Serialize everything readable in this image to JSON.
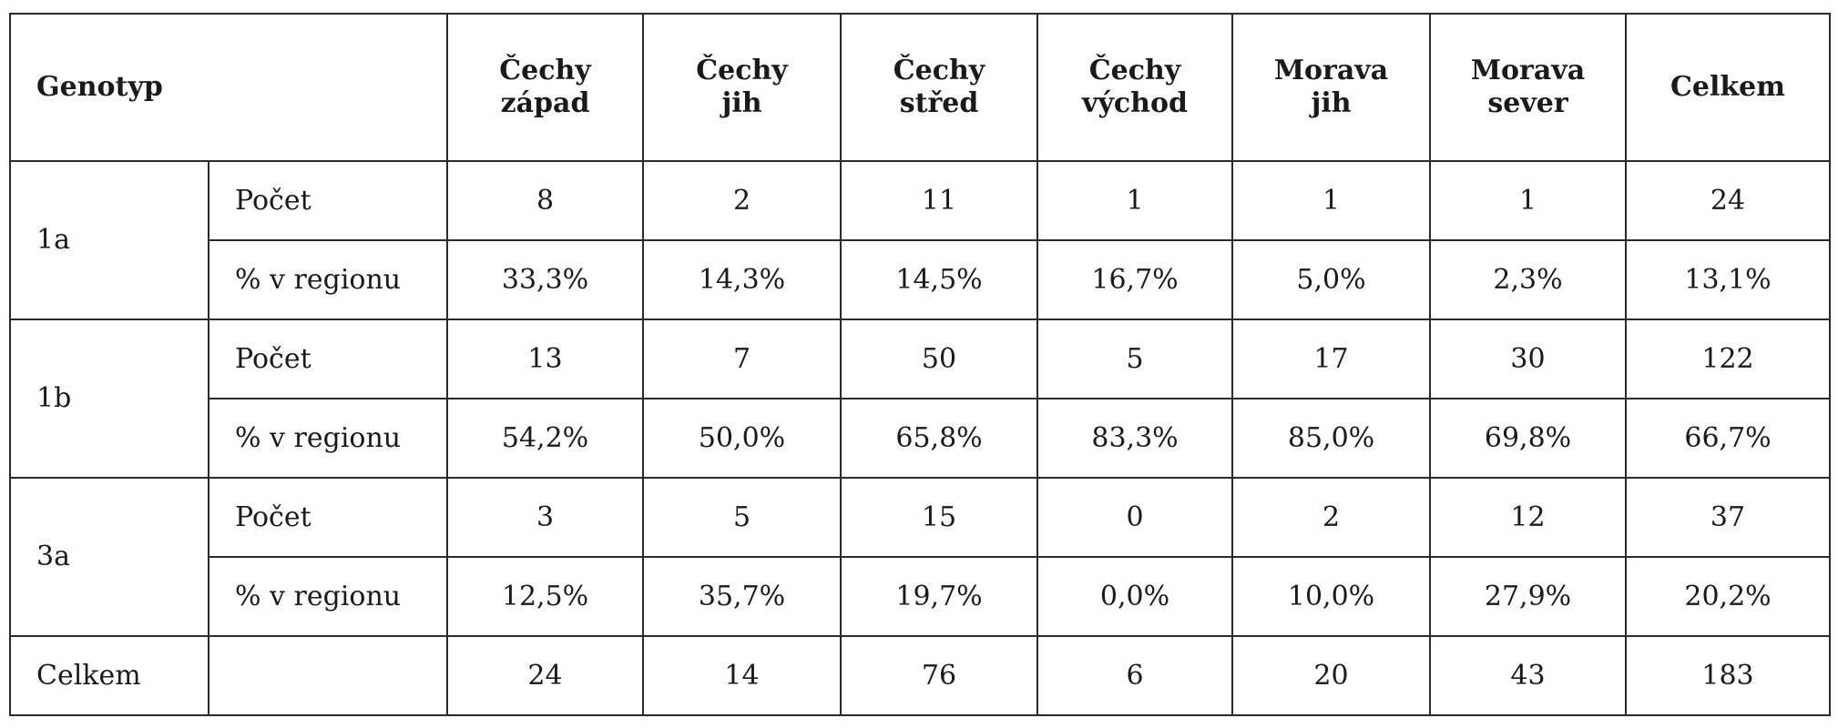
{
  "table": {
    "corner_label": "Genotyp",
    "columns": [
      {
        "line1": "Čechy",
        "line2": "západ"
      },
      {
        "line1": "Čechy",
        "line2": "jih"
      },
      {
        "line1": "Čechy",
        "line2": "střed"
      },
      {
        "line1": "Čechy",
        "line2": "východ"
      },
      {
        "line1": "Morava",
        "line2": "jih"
      },
      {
        "line1": "Morava",
        "line2": "sever"
      },
      {
        "line1": "Celkem",
        "line2": ""
      }
    ],
    "groups": [
      {
        "genotype": "1a",
        "count_label": "Počet",
        "count": [
          "8",
          "2",
          "11",
          "1",
          "1",
          "1",
          "24"
        ],
        "pct_label": "% v regionu",
        "pct": [
          "33,3%",
          "14,3%",
          "14,5%",
          "16,7%",
          "5,0%",
          "2,3%",
          "13,1%"
        ]
      },
      {
        "genotype": "1b",
        "count_label": "Počet",
        "count": [
          "13",
          "7",
          "50",
          "5",
          "17",
          "30",
          "122"
        ],
        "pct_label": "% v regionu",
        "pct": [
          "54,2%",
          "50,0%",
          "65,8%",
          "83,3%",
          "85,0%",
          "69,8%",
          "66,7%"
        ]
      },
      {
        "genotype": "3a",
        "count_label": "Počet",
        "count": [
          "3",
          "5",
          "15",
          "0",
          "2",
          "12",
          "37"
        ],
        "pct_label": "% v regionu",
        "pct": [
          "12,5%",
          "35,7%",
          "19,7%",
          "0,0%",
          "10,0%",
          "27,9%",
          "20,2%"
        ]
      }
    ],
    "total": {
      "label": "Celkem",
      "sublabel": "",
      "values": [
        "24",
        "14",
        "76",
        "6",
        "20",
        "43",
        "183"
      ]
    }
  }
}
